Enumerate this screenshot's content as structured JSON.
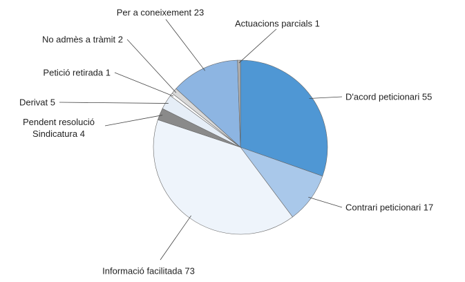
{
  "chart_data": {
    "type": "pie",
    "categories": [
      "D'acord peticionari",
      "Contrari peticionari",
      "Informació facilitada",
      "Pendent resolució Sindicatura",
      "Derivat",
      "Petició retirada",
      "No admès a tràmit",
      "Per a coneixement",
      "Actuacions parcials"
    ],
    "values": [
      55,
      17,
      73,
      4,
      5,
      1,
      2,
      23,
      1
    ],
    "colors": [
      "#4f97d4",
      "#a9c8ea",
      "#eef4fb",
      "#8a8a8a",
      "#e6eef7",
      "#ffffff",
      "#d9d9d9",
      "#8db5e2",
      "#b0b0b0"
    ]
  }
}
